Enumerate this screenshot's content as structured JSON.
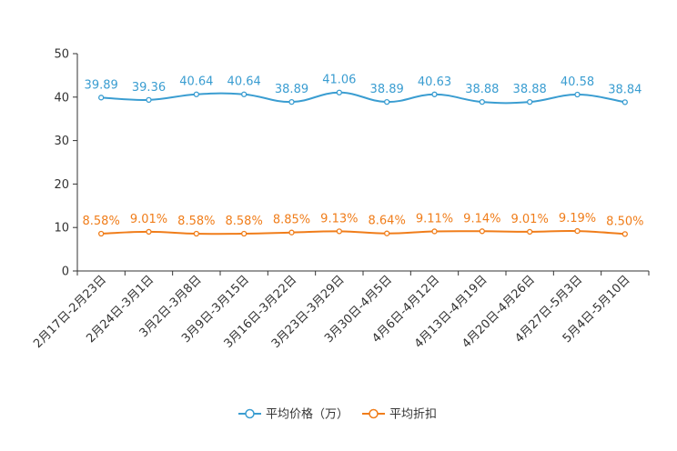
{
  "chart_data": {
    "type": "line",
    "title": "",
    "xlabel": "",
    "ylabel": "",
    "ylim": [
      0,
      50
    ],
    "yticks": [
      "0",
      "10",
      "20",
      "30",
      "40",
      "50"
    ],
    "grid": false,
    "legend_position": "bottom-center",
    "categories": [
      "2月17日-2月23日",
      "2月24日-3月1日",
      "3月2日-3月8日",
      "3月9日-3月15日",
      "3月16日-3月22日",
      "3月23日-3月29日",
      "3月30日-4月5日",
      "4月6日-4月12日",
      "4月13日-4月19日",
      "4月20日-4月26日",
      "4月27日-5月3日",
      "5月4日-5月10日"
    ],
    "series": [
      {
        "name": "平均价格（万）",
        "color": "#3a9dd1",
        "values": [
          39.89,
          39.36,
          40.64,
          40.64,
          38.89,
          41.06,
          38.89,
          40.63,
          38.88,
          38.88,
          40.58,
          38.84
        ],
        "labels": [
          "39.89",
          "39.36",
          "40.64",
          "40.64",
          "38.89",
          "41.06",
          "38.89",
          "40.63",
          "38.88",
          "38.88",
          "40.58",
          "38.84"
        ]
      },
      {
        "name": "平均折扣",
        "color": "#f07d1a",
        "values": [
          8.58,
          9.01,
          8.58,
          8.58,
          8.85,
          9.13,
          8.64,
          9.11,
          9.14,
          9.01,
          9.19,
          8.5
        ],
        "labels": [
          "8.58%",
          "9.01%",
          "8.58%",
          "8.58%",
          "8.85%",
          "9.13%",
          "8.64%",
          "9.11%",
          "9.14%",
          "9.01%",
          "9.19%",
          "8.50%"
        ]
      }
    ]
  }
}
